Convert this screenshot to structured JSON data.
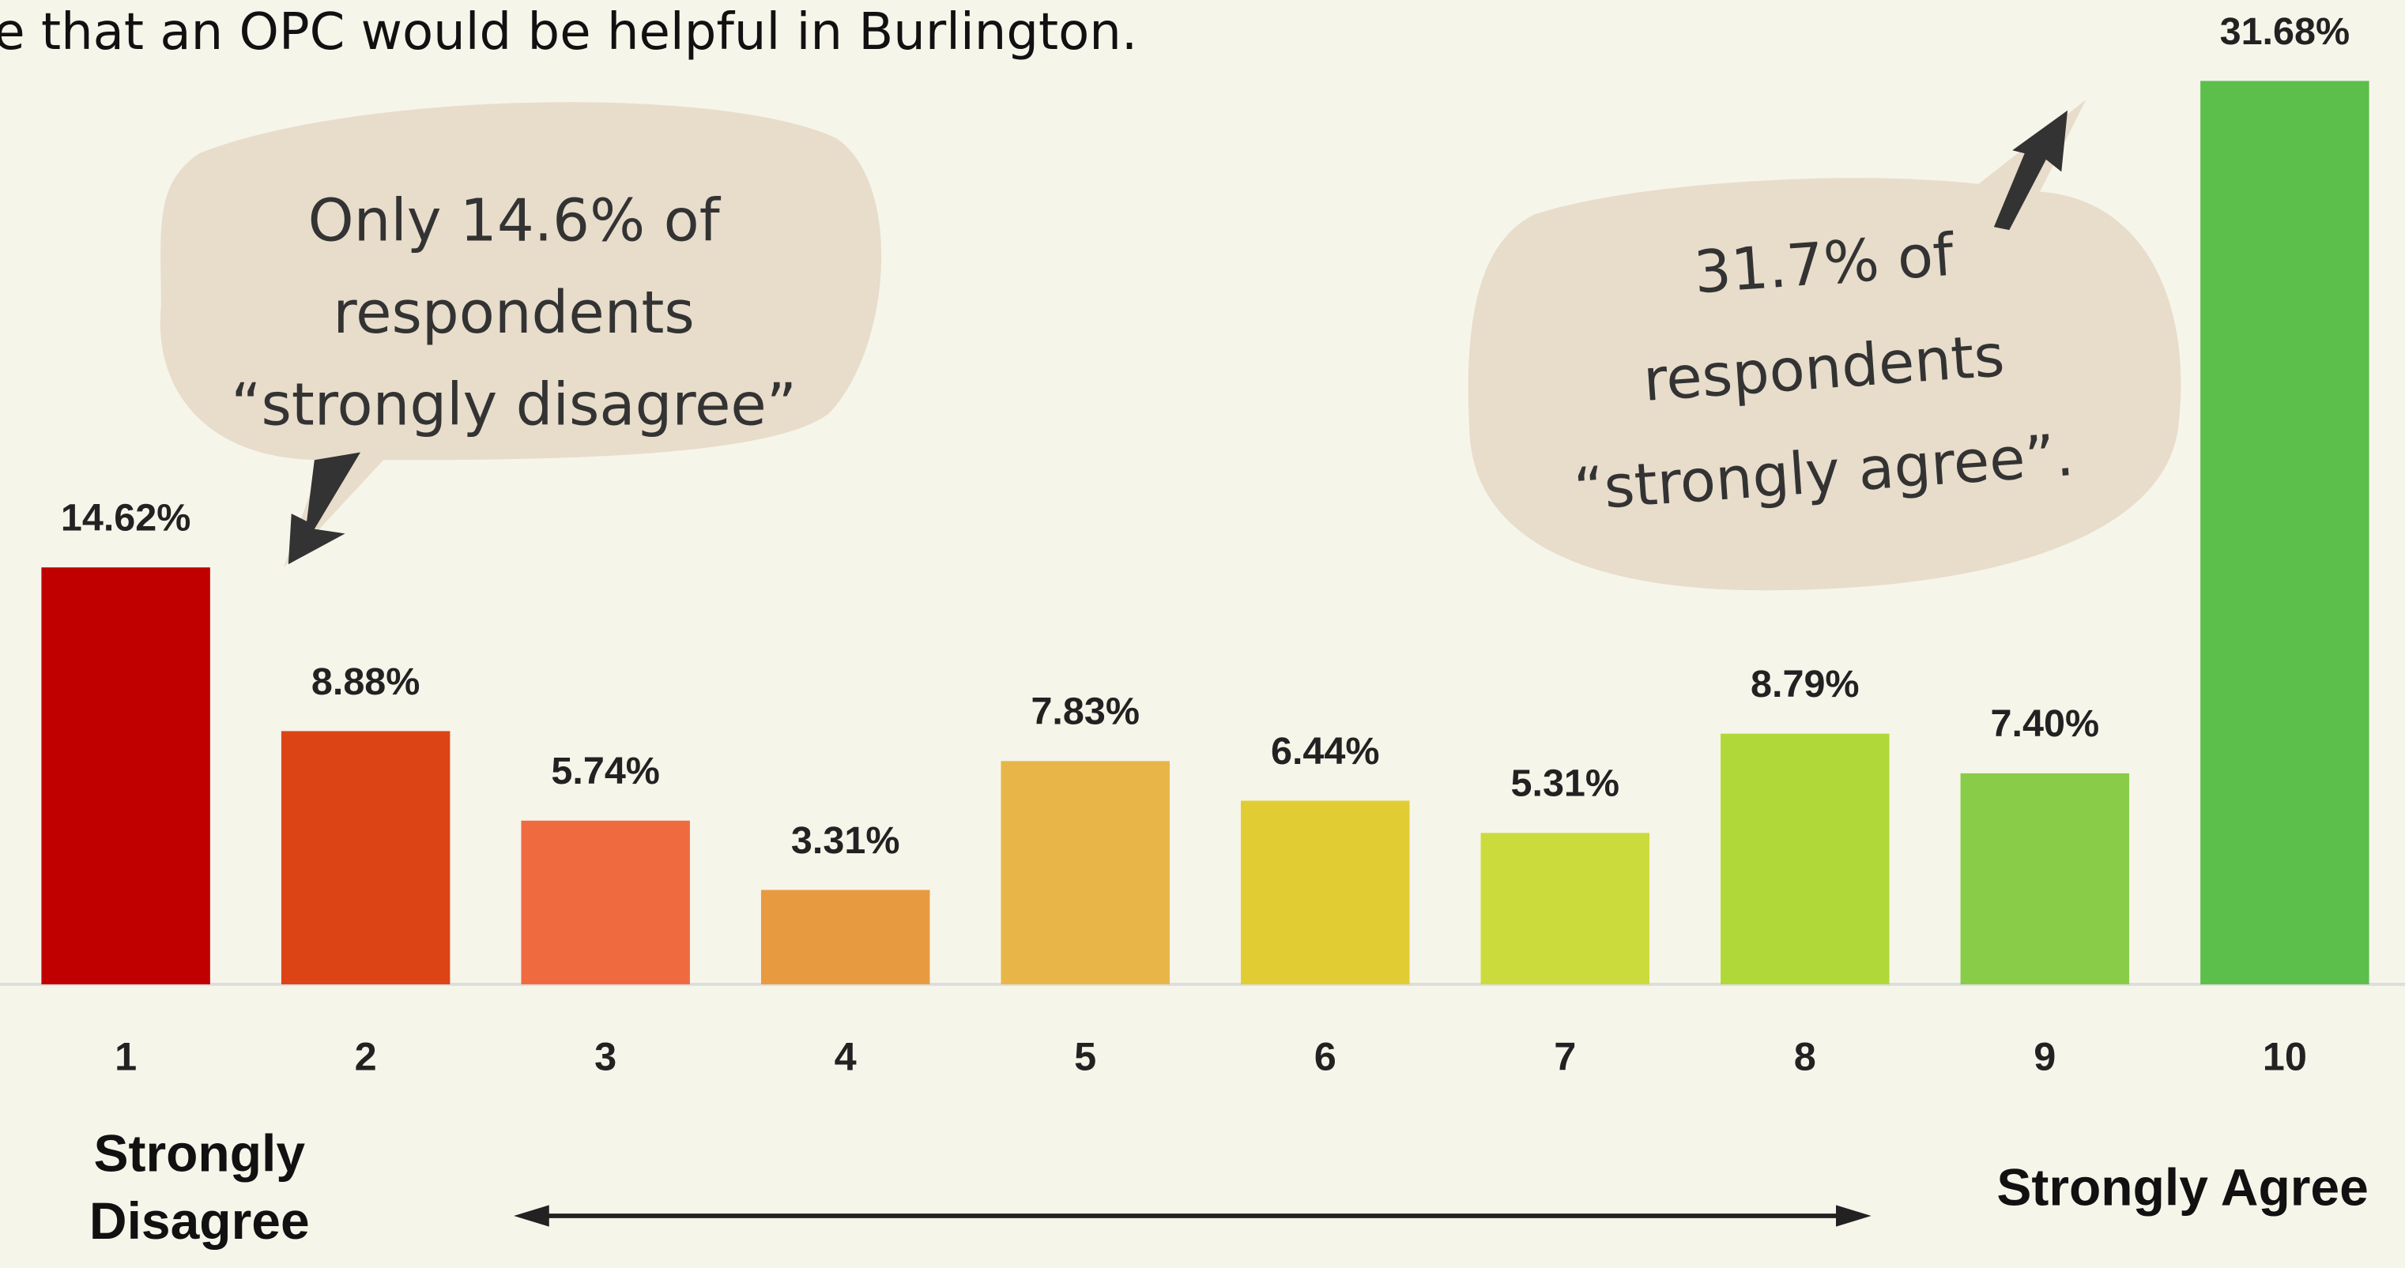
{
  "chart_data": {
    "type": "bar",
    "title": "e that an OPC would be helpful in Burlington.",
    "categories": [
      "1",
      "2",
      "3",
      "4",
      "5",
      "6",
      "7",
      "8",
      "9",
      "10"
    ],
    "values": [
      14.62,
      8.88,
      5.74,
      3.31,
      7.83,
      6.44,
      5.31,
      8.79,
      7.4,
      31.68
    ],
    "value_labels": [
      "14.62%",
      "8.88%",
      "5.74%",
      "3.31%",
      "7.83%",
      "6.44%",
      "5.31%",
      "8.79%",
      "7.40%",
      "31.68%"
    ],
    "colors": [
      "#c00000",
      "#dc4416",
      "#f06a40",
      "#e89a40",
      "#e8b648",
      "#e2cc34",
      "#ccdb3c",
      "#b0d838",
      "#88cc48",
      "#5cbf4c"
    ],
    "low_label": [
      "Strongly",
      "Disagree"
    ],
    "high_label": "Strongly Agree",
    "annotations": [
      {
        "lines": [
          "Only 14.6% of",
          "respondents",
          "“strongly disagree”"
        ]
      },
      {
        "lines": [
          "31.7% of",
          "respondents",
          "“strongly agree”."
        ]
      }
    ]
  }
}
